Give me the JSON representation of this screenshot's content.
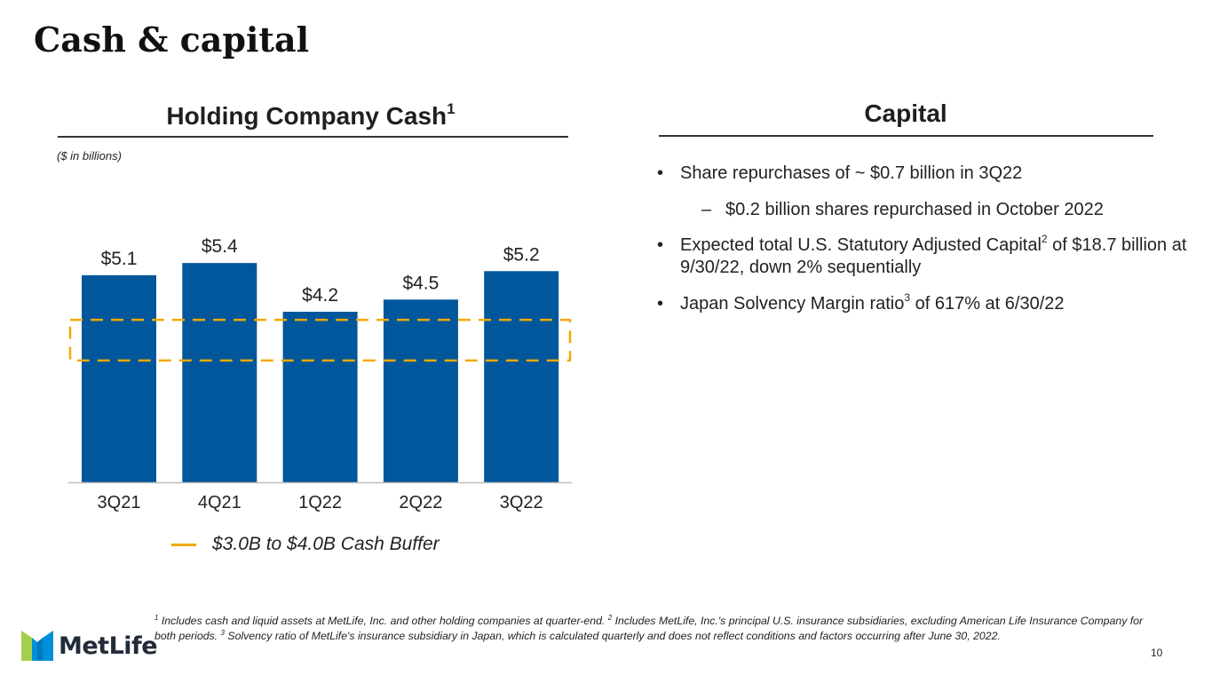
{
  "slide": {
    "title": "Cash & capital",
    "page_number": "10"
  },
  "holding": {
    "title": "Holding Company Cash",
    "title_sup": "1",
    "units_note": "($ in billions)"
  },
  "chart_data": {
    "type": "bar",
    "title": "Holding Company Cash",
    "categories": [
      "3Q21",
      "4Q21",
      "1Q22",
      "2Q22",
      "3Q22"
    ],
    "values": [
      5.1,
      5.4,
      4.2,
      4.5,
      5.2
    ],
    "data_labels": [
      "$5.1",
      "$5.4",
      "$4.2",
      "$4.5",
      "$5.2"
    ],
    "buffer_range": [
      3.0,
      4.0
    ],
    "ylim": [
      0,
      5.6
    ],
    "bar_color": "#00579b",
    "buffer_color": "#f2a900",
    "legend": [
      {
        "name": "$3.0B to $4.0B Cash Buffer",
        "color": "#f2a900",
        "style": "dashed"
      }
    ],
    "legend_position": "bottom-center"
  },
  "capital": {
    "title": "Capital",
    "b1": "Share repurchases of ~ $0.7 billion in 3Q22",
    "b1_sub": "$0.2 billion shares repurchased in October 2022",
    "b2_pre": "Expected total U.S. Statutory Adjusted Capital",
    "b2_sup": "2",
    "b2_post": " of $18.7 billion at 9/30/22, down 2% sequentially",
    "b3_pre": "Japan Solvency Margin ratio",
    "b3_sup": "3",
    "b3_post": " of 617% at 6/30/22",
    "bullet_char": "•",
    "dash_char": "–"
  },
  "footnotes": {
    "n1": "1",
    "t1": " Includes cash and liquid assets at MetLife, Inc. and other holding companies at quarter-end. ",
    "n2": "2",
    "t2": " Includes MetLife, Inc.'s principal U.S. insurance subsidiaries, excluding American Life Insurance Company for both periods. ",
    "n3": "3",
    "t3": " Solvency ratio of MetLife's insurance subsidiary in Japan, which is calculated quarterly and does not reflect conditions and factors occurring after June 30, 2022."
  },
  "logo": {
    "wordmark": "MetLife",
    "icon": "metlife-m-icon",
    "colors": [
      "#0090da",
      "#a4ce4e",
      "#007abc"
    ]
  }
}
